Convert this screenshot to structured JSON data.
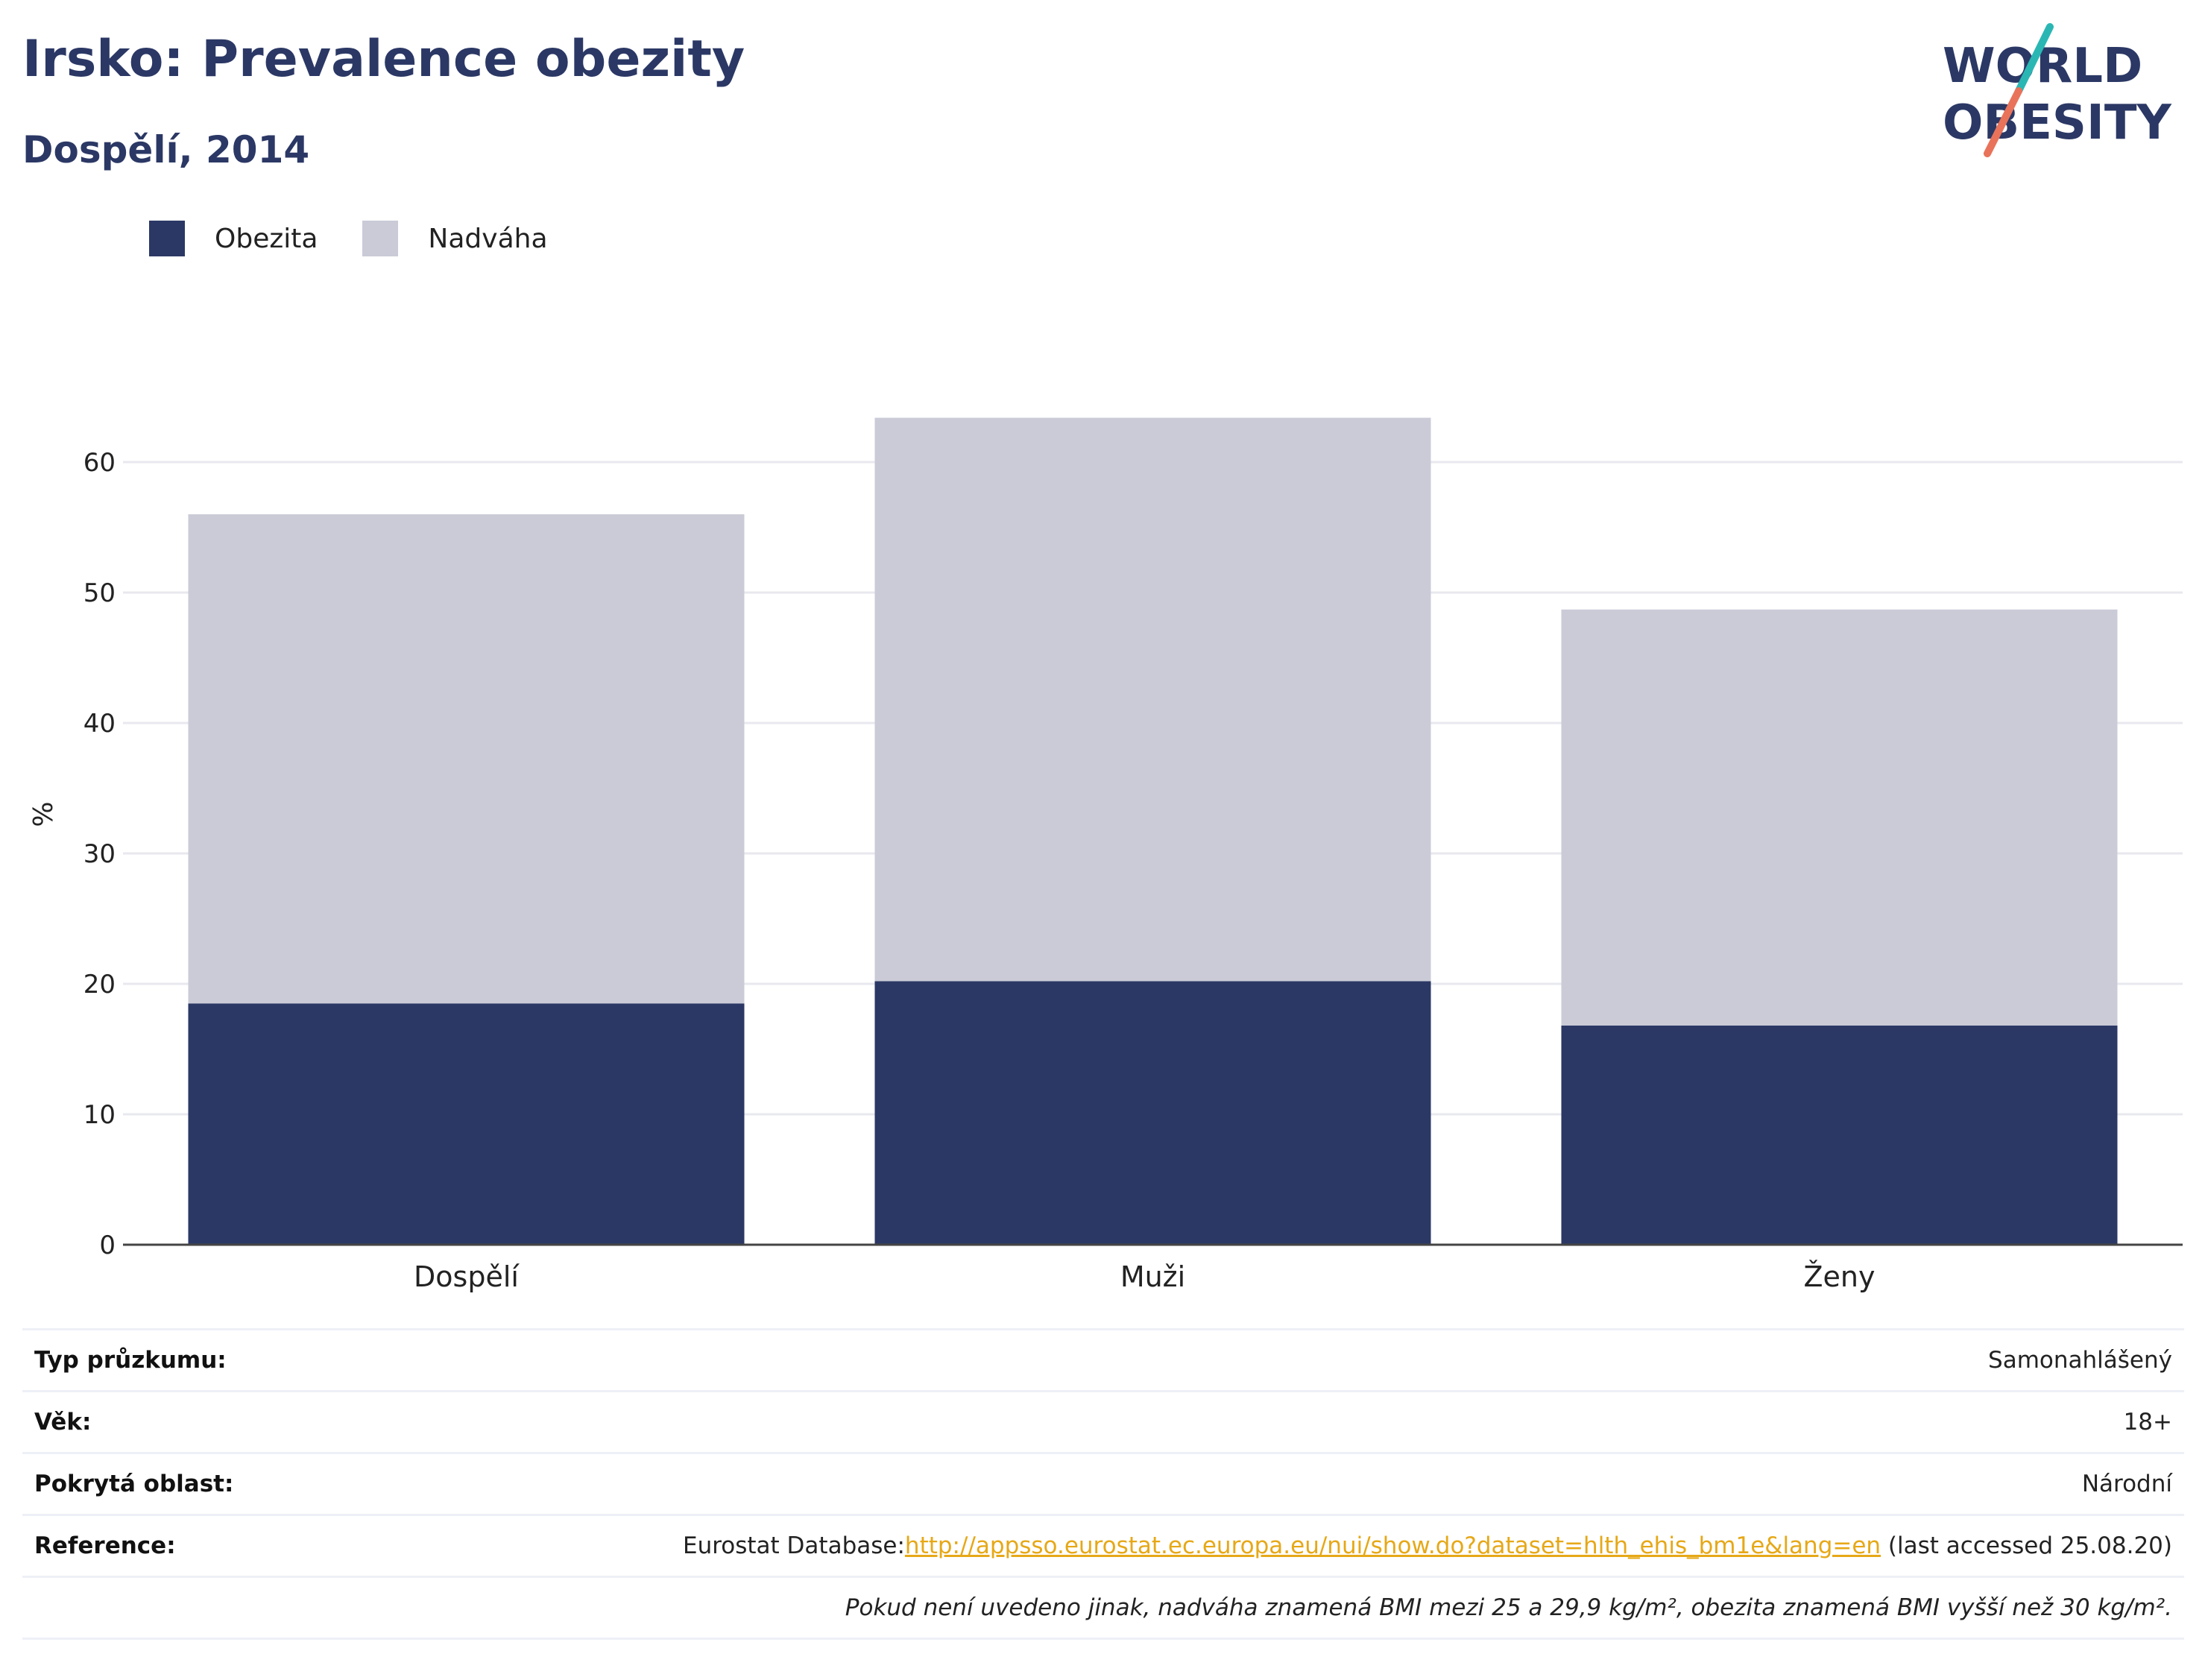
{
  "header": {
    "title": "Irsko: Prevalence obezity",
    "subtitle": "Dospělí, 2014"
  },
  "logo": {
    "line1": "WORLD",
    "line2": "OBESITY",
    "colors": {
      "text": "#2b3865",
      "slash_teal": "#2ab7b4",
      "slash_coral": "#e8735a"
    }
  },
  "legend": [
    {
      "label": "Obezita",
      "color": "#2b3865"
    },
    {
      "label": "Nadváha",
      "color": "#cacbd7"
    }
  ],
  "chart_data": {
    "type": "bar",
    "stacked": true,
    "categories": [
      "Dospělí",
      "Muži",
      "Ženy"
    ],
    "series": [
      {
        "name": "Obezita",
        "values": [
          18.5,
          20.2,
          16.8
        ],
        "color": "#2b3865"
      },
      {
        "name": "Nadváha",
        "values": [
          37.5,
          43.2,
          31.9
        ],
        "color": "#cacbd7"
      }
    ],
    "ylabel": "%",
    "yticks": [
      0,
      10,
      20,
      30,
      40,
      50,
      60
    ],
    "ylim": [
      0,
      66
    ],
    "grid": true,
    "legend_position": "top-left"
  },
  "info": {
    "rows": [
      {
        "label": "Typ průzkumu:",
        "value": "Samonahlášený"
      },
      {
        "label": "Věk:",
        "value": "18+"
      },
      {
        "label": "Pokrytá oblast:",
        "value": "Národní"
      }
    ],
    "reference": {
      "label": "Reference:",
      "prefix": "Eurostat Database:",
      "link": "http://appsso.eurostat.ec.europa.eu/nui/show.do?dataset=hlth_ehis_bm1e&lang=en",
      "suffix": " (last accessed 25.08.20)"
    },
    "note": "Pokud není uvedeno jinak, nadváha znamená BMI mezi 25 a 29,9 kg/m², obezita znamená BMI vyšší než 30 kg/m²."
  }
}
